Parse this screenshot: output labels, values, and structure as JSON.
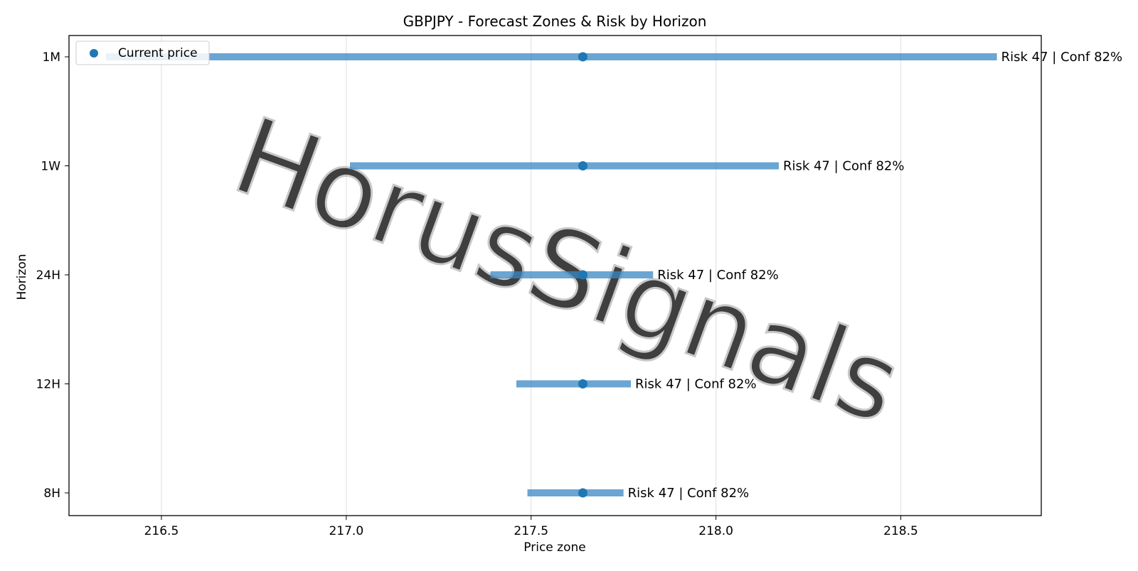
{
  "chart_data": {
    "type": "range",
    "title": "GBPJPY - Forecast Zones & Risk by Horizon",
    "xlabel": "Price zone",
    "ylabel": "Horizon",
    "xlim": [
      216.25,
      218.88
    ],
    "x_ticks": [
      216.5,
      217.0,
      217.5,
      218.0,
      218.5
    ],
    "x_tick_labels": [
      "216.5",
      "217.0",
      "217.5",
      "218.0",
      "218.5"
    ],
    "grid": "vertical",
    "legend": {
      "placement": "top-left",
      "entries": [
        "Current price"
      ]
    },
    "watermark": "HorusSignals",
    "colors": {
      "zone": "#3a88c4",
      "point": "#1f77b4"
    },
    "horizons": [
      {
        "label": "1M",
        "low": 216.35,
        "high": 218.76,
        "current": 217.64,
        "annotation": "Risk 47 | Conf 82%"
      },
      {
        "label": "1W",
        "low": 217.01,
        "high": 218.17,
        "current": 217.64,
        "annotation": "Risk 47 | Conf 82%"
      },
      {
        "label": "24H",
        "low": 217.39,
        "high": 217.83,
        "current": 217.64,
        "annotation": "Risk 47 | Conf 82%"
      },
      {
        "label": "12H",
        "low": 217.46,
        "high": 217.77,
        "current": 217.64,
        "annotation": "Risk 47 | Conf 82%"
      },
      {
        "label": "8H",
        "low": 217.49,
        "high": 217.75,
        "current": 217.64,
        "annotation": "Risk 47 | Conf 82%"
      }
    ]
  }
}
